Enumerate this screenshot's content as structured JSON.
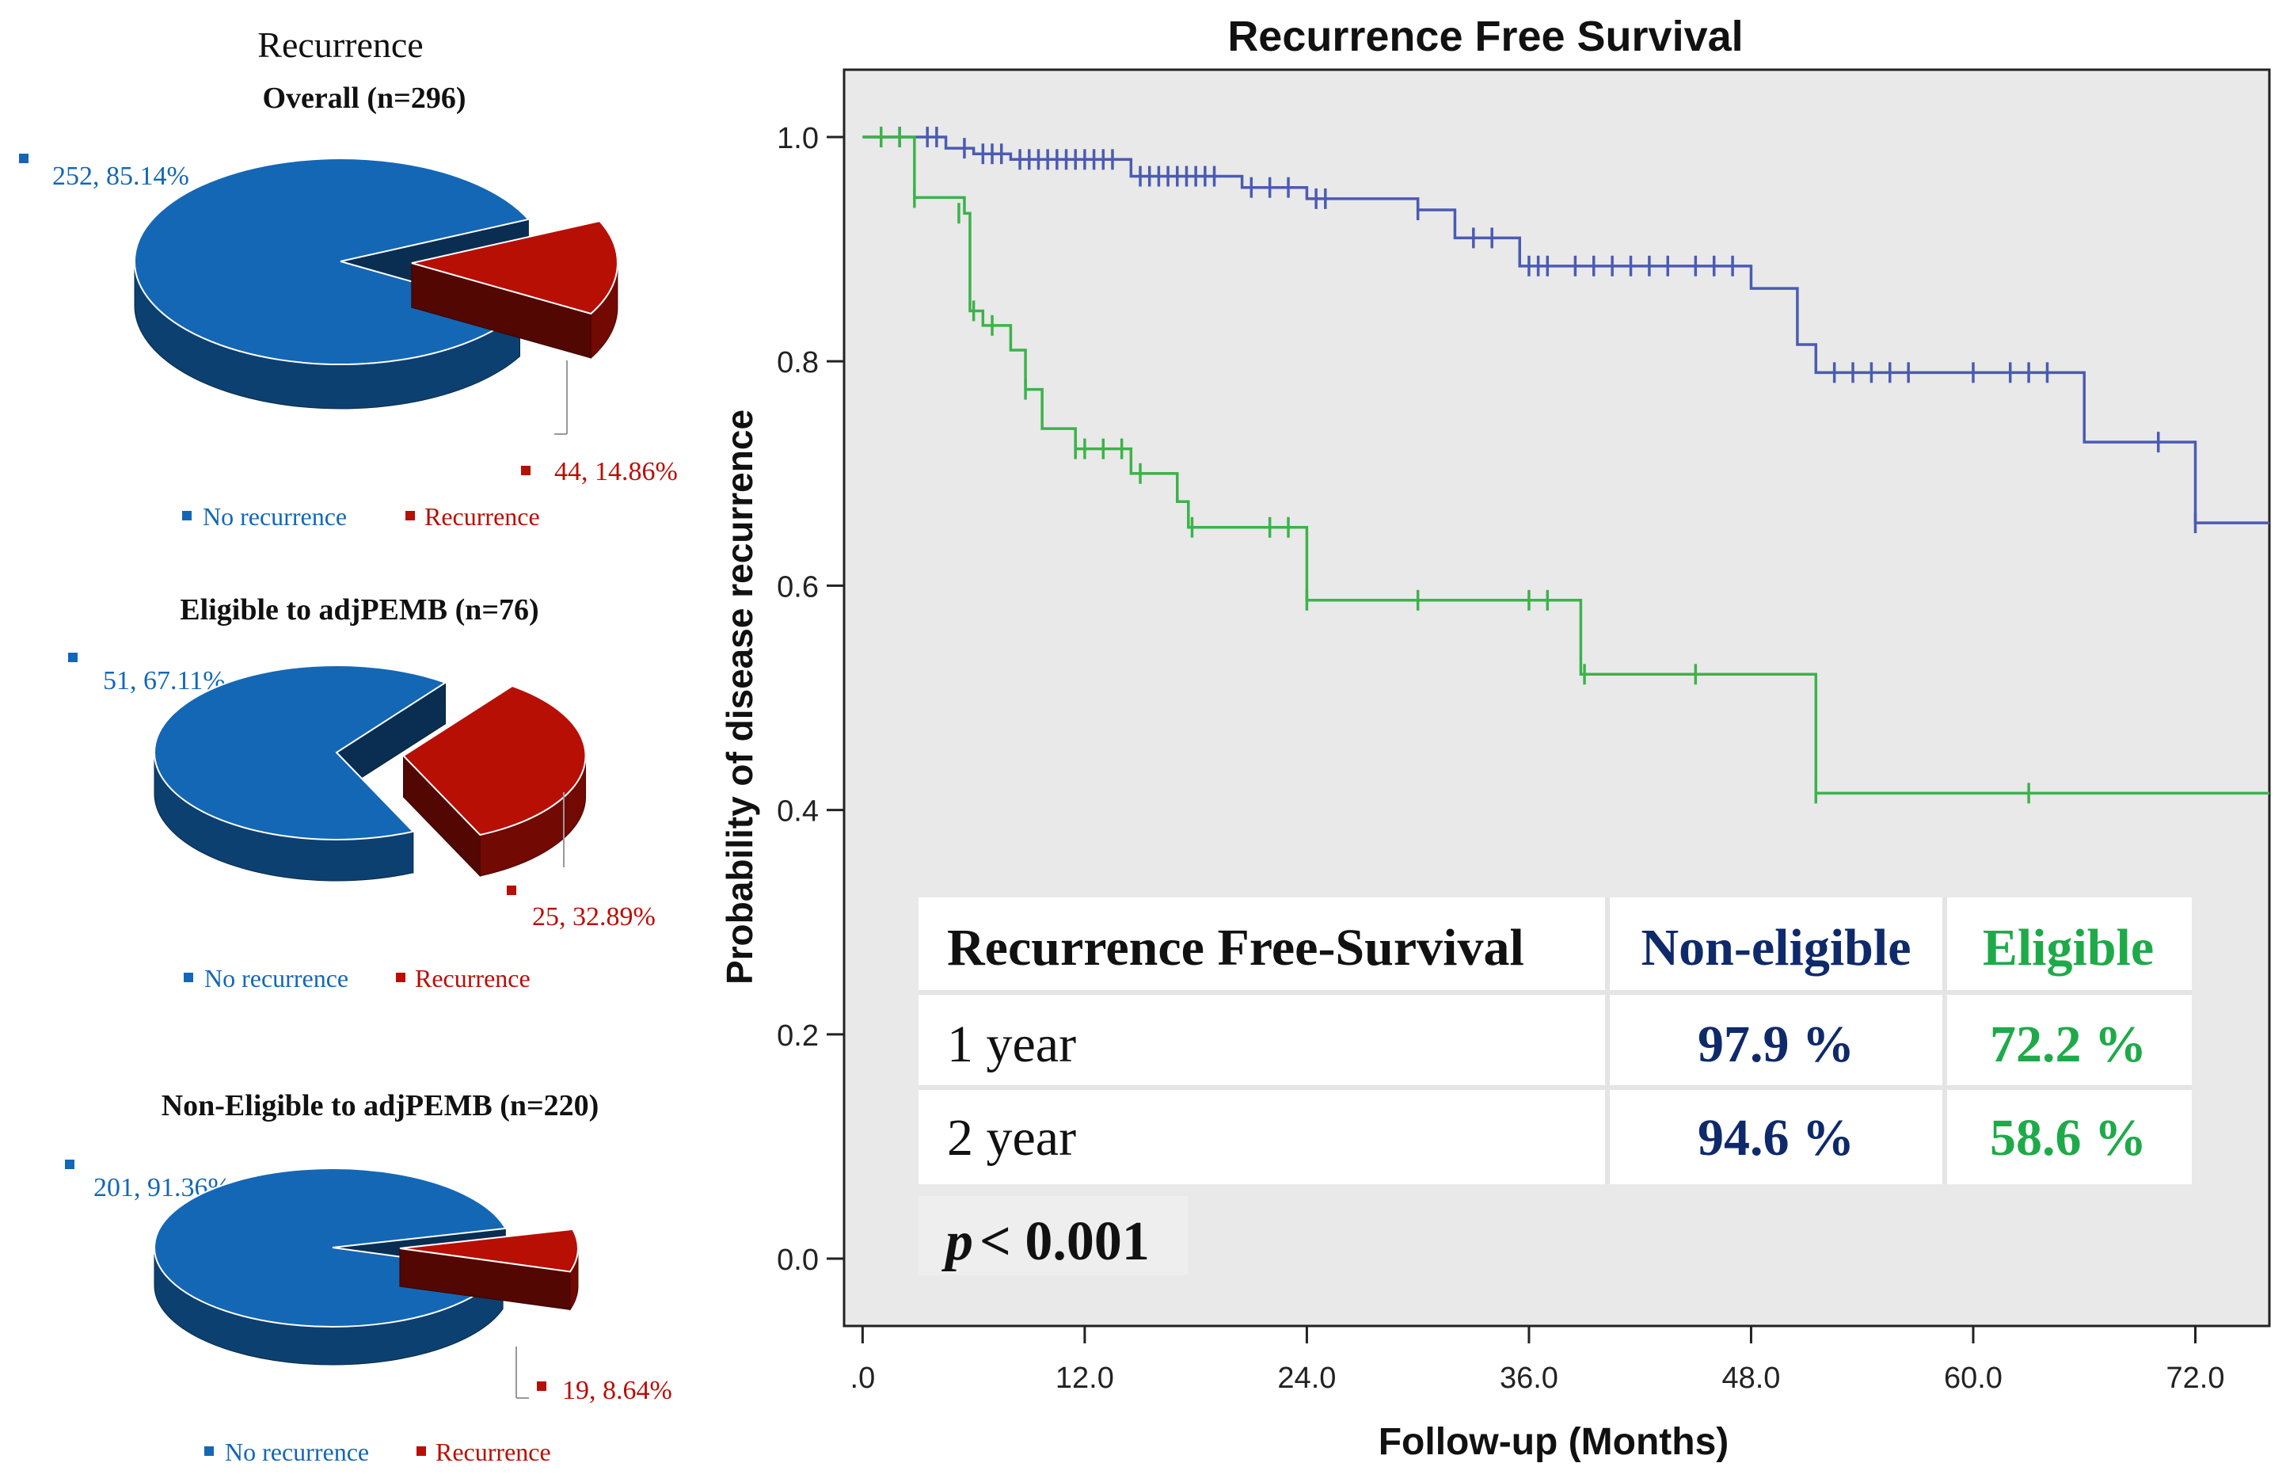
{
  "pies": {
    "header": "Recurrence",
    "legend_no": "No recurrence",
    "legend_rec": "Recurrence",
    "colors": {
      "no": "#1467b5",
      "rec": "#b80f05"
    },
    "overall": {
      "title": "Overall (n=296)",
      "no_label": "252, 85.14%",
      "rec_label": "44, 14.86%"
    },
    "eligible": {
      "title": "Eligible to adjPEMB (n=76)",
      "no_label": "51, 67.11%",
      "rec_label": "25, 32.89%"
    },
    "noneligible": {
      "title": "Non-Eligible to adjPEMB (n=220)",
      "no_label": "201, 91.36%",
      "rec_label": "19, 8.64%"
    }
  },
  "chart_data": [
    {
      "type": "pie",
      "title": "Overall (n=296)",
      "categories": [
        "No recurrence",
        "Recurrence"
      ],
      "values": [
        252,
        44
      ],
      "percent": [
        85.14,
        14.86
      ]
    },
    {
      "type": "pie",
      "title": "Eligible to adjPEMB (n=76)",
      "categories": [
        "No recurrence",
        "Recurrence"
      ],
      "values": [
        51,
        25
      ],
      "percent": [
        67.11,
        32.89
      ]
    },
    {
      "type": "pie",
      "title": "Non-Eligible to adjPEMB (n=220)",
      "categories": [
        "No recurrence",
        "Recurrence"
      ],
      "values": [
        201,
        19
      ],
      "percent": [
        91.36,
        8.64
      ]
    },
    {
      "type": "line",
      "title": "Recurrence Free Survival",
      "xlabel": "Follow-up (Months)",
      "ylabel": "Probability of disease recurrence",
      "xlim": [
        -1,
        76
      ],
      "ylim": [
        -0.06,
        1.06
      ],
      "xticks": [
        0,
        12,
        24,
        36,
        48,
        60,
        72
      ],
      "xtick_labels": [
        ".0",
        "12.0",
        "24.0",
        "36.0",
        "48.0",
        "60.0",
        "72.0"
      ],
      "yticks": [
        0,
        0.2,
        0.4,
        0.6,
        0.8,
        1.0
      ],
      "ytick_labels": [
        "0.0",
        "0.2",
        "0.4",
        "0.6",
        "0.8",
        "1.0"
      ],
      "series": [
        {
          "name": "Non-eligible",
          "color": "#4b5bb3",
          "steps": [
            [
              0,
              1.0
            ],
            [
              4.5,
              0.99
            ],
            [
              6,
              0.985
            ],
            [
              8,
              0.98
            ],
            [
              14.5,
              0.965
            ],
            [
              20.5,
              0.955
            ],
            [
              24,
              0.945
            ],
            [
              30,
              0.935
            ],
            [
              32,
              0.91
            ],
            [
              35.5,
              0.885
            ],
            [
              48,
              0.865
            ],
            [
              50.5,
              0.815
            ],
            [
              51.5,
              0.79
            ],
            [
              66,
              0.728
            ],
            [
              72,
              0.656
            ],
            [
              76,
              0.656
            ]
          ],
          "censored": [
            [
              1,
              1.0
            ],
            [
              2,
              1.0
            ],
            [
              3.5,
              1.0
            ],
            [
              4,
              1.0
            ],
            [
              5.5,
              0.99
            ],
            [
              6.5,
              0.985
            ],
            [
              7,
              0.985
            ],
            [
              7.5,
              0.985
            ],
            [
              8.5,
              0.98
            ],
            [
              9,
              0.98
            ],
            [
              9.5,
              0.98
            ],
            [
              10,
              0.98
            ],
            [
              10.5,
              0.98
            ],
            [
              11,
              0.98
            ],
            [
              11.5,
              0.98
            ],
            [
              12,
              0.98
            ],
            [
              12.5,
              0.98
            ],
            [
              13,
              0.98
            ],
            [
              13.5,
              0.98
            ],
            [
              15,
              0.965
            ],
            [
              15.5,
              0.965
            ],
            [
              16,
              0.965
            ],
            [
              16.5,
              0.965
            ],
            [
              17,
              0.965
            ],
            [
              17.5,
              0.965
            ],
            [
              18,
              0.965
            ],
            [
              18.5,
              0.965
            ],
            [
              19,
              0.965
            ],
            [
              21,
              0.955
            ],
            [
              22,
              0.955
            ],
            [
              23,
              0.955
            ],
            [
              24.5,
              0.945
            ],
            [
              25,
              0.945
            ],
            [
              30,
              0.935
            ],
            [
              33,
              0.91
            ],
            [
              34,
              0.91
            ],
            [
              36,
              0.885
            ],
            [
              36.5,
              0.885
            ],
            [
              37,
              0.885
            ],
            [
              38.5,
              0.885
            ],
            [
              39.5,
              0.885
            ],
            [
              40.5,
              0.885
            ],
            [
              41.5,
              0.885
            ],
            [
              42.5,
              0.885
            ],
            [
              43.5,
              0.885
            ],
            [
              45,
              0.885
            ],
            [
              46,
              0.885
            ],
            [
              47,
              0.885
            ],
            [
              52.5,
              0.79
            ],
            [
              53.5,
              0.79
            ],
            [
              54.5,
              0.79
            ],
            [
              55.5,
              0.79
            ],
            [
              56.5,
              0.79
            ],
            [
              60,
              0.79
            ],
            [
              62,
              0.79
            ],
            [
              63,
              0.79
            ],
            [
              64,
              0.79
            ],
            [
              70,
              0.728
            ],
            [
              72,
              0.656
            ]
          ]
        },
        {
          "name": "Eligible",
          "color": "#3cb34a",
          "steps": [
            [
              0,
              1.0
            ],
            [
              2.8,
              0.946
            ],
            [
              5.5,
              0.932
            ],
            [
              5.8,
              0.845
            ],
            [
              6.5,
              0.832
            ],
            [
              8,
              0.81
            ],
            [
              8.8,
              0.775
            ],
            [
              9.7,
              0.74
            ],
            [
              11.5,
              0.722
            ],
            [
              14.5,
              0.7
            ],
            [
              17,
              0.675
            ],
            [
              17.6,
              0.652
            ],
            [
              24,
              0.587
            ],
            [
              38.8,
              0.521
            ],
            [
              51.5,
              0.415
            ],
            [
              76,
              0.415
            ]
          ],
          "censored": [
            [
              1,
              1.0
            ],
            [
              2,
              1.0
            ],
            [
              2.8,
              0.946
            ],
            [
              5.2,
              0.932
            ],
            [
              6,
              0.845
            ],
            [
              7,
              0.832
            ],
            [
              8.8,
              0.775
            ],
            [
              11.5,
              0.722
            ],
            [
              12,
              0.722
            ],
            [
              13,
              0.722
            ],
            [
              14,
              0.722
            ],
            [
              15,
              0.7
            ],
            [
              17.8,
              0.652
            ],
            [
              22,
              0.652
            ],
            [
              23,
              0.652
            ],
            [
              24,
              0.587
            ],
            [
              30,
              0.587
            ],
            [
              36,
              0.587
            ],
            [
              37,
              0.587
            ],
            [
              39,
              0.521
            ],
            [
              45,
              0.521
            ],
            [
              51.5,
              0.415
            ],
            [
              63,
              0.415
            ]
          ]
        }
      ],
      "annotation_table": {
        "headers": [
          "Recurrence Free-Survival",
          "Non-eligible",
          "Eligible"
        ],
        "rows": [
          {
            "label": "1 year",
            "non_eligible": "97.9 %",
            "eligible": "72.2 %"
          },
          {
            "label": "2 year",
            "non_eligible": "94.6 %",
            "eligible": "58.6 %"
          }
        ]
      },
      "pvalue_symbol": "p",
      "pvalue_text": "< 0.001"
    }
  ]
}
